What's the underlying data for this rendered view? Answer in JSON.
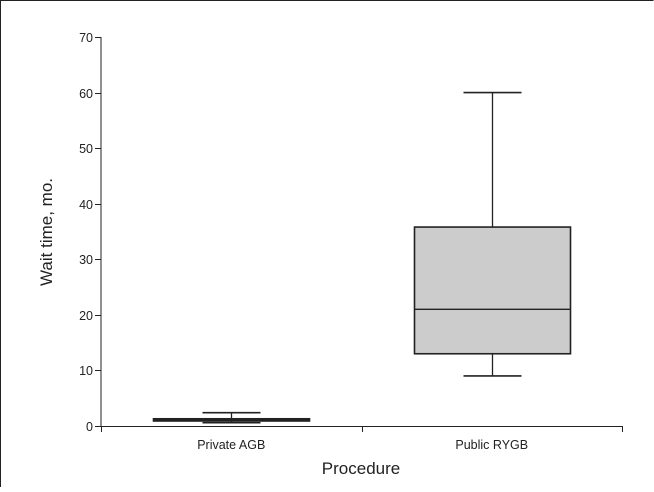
{
  "chart_data": {
    "type": "box",
    "xlabel": "Procedure",
    "ylabel": "Wait time, mo.",
    "ylim": [
      0,
      70
    ],
    "yticks": [
      0,
      10,
      20,
      30,
      40,
      50,
      60,
      70
    ],
    "categories": [
      "Private AGB",
      "Public RYGB"
    ],
    "boxes": [
      {
        "category": "Private AGB",
        "min": 0.6,
        "q1": 0.9,
        "median": 1.1,
        "q3": 1.3,
        "max": 2.4
      },
      {
        "category": "Public RYGB",
        "min": 9,
        "q1": 13,
        "median": 21,
        "q3": 35.8,
        "max": 60
      }
    ],
    "box_color": "#cccccc",
    "line_color": "#222222",
    "grid": false
  }
}
